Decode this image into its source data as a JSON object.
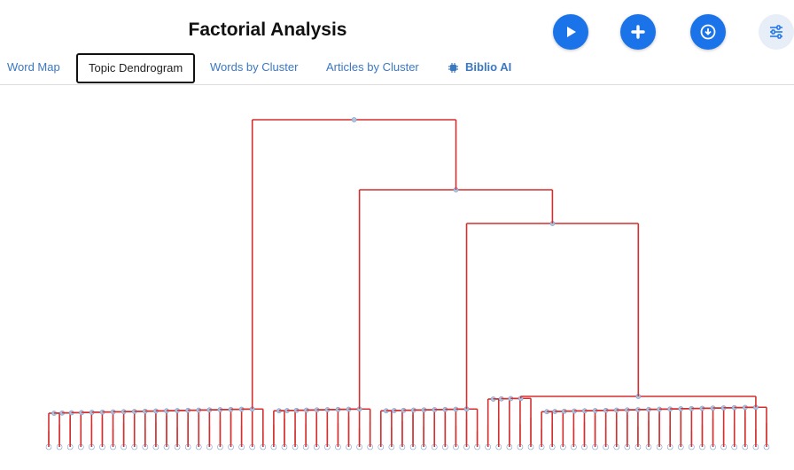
{
  "header": {
    "title": "Factorial Analysis"
  },
  "actions": {
    "play_icon": "play-icon",
    "add_icon": "plus-icon",
    "download_icon": "download-icon",
    "settings_icon": "sliders-icon"
  },
  "tabs": [
    {
      "label": "Word Map",
      "active": false
    },
    {
      "label": "Topic Dendrogram",
      "active": true
    },
    {
      "label": "Words by Cluster",
      "active": false
    },
    {
      "label": "Articles by Cluster",
      "active": false
    },
    {
      "label": "Biblio AI",
      "active": false
    }
  ],
  "colors": {
    "link": "#d32f2f",
    "node": "#b0c4de",
    "leaf_node": "#4a90d9",
    "accent": "#1a73e8"
  },
  "dendrogram": {
    "leaf_count": 68
  }
}
